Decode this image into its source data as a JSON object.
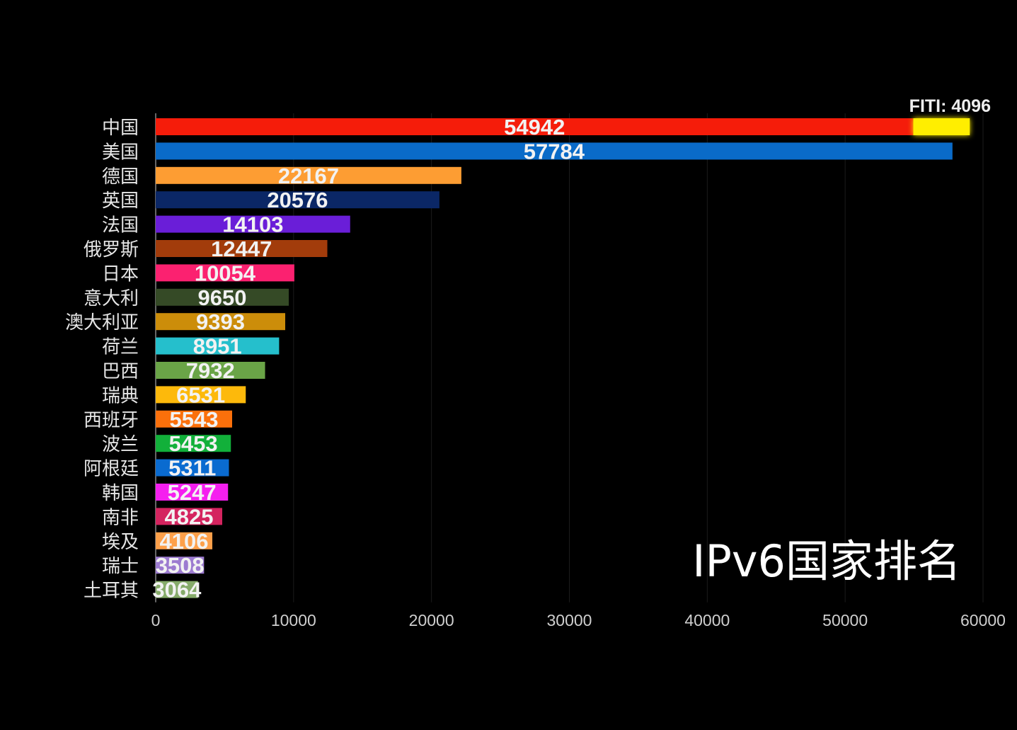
{
  "chart_data": {
    "type": "bar",
    "orientation": "horizontal",
    "title": "",
    "watermark_text": "IPv6国家排名",
    "xlim": [
      0,
      60000
    ],
    "xticks": [
      0,
      10000,
      20000,
      30000,
      40000,
      50000,
      60000
    ],
    "grid": true,
    "categories": [
      "中国",
      "美国",
      "德国",
      "英国",
      "法国",
      "俄罗斯",
      "日本",
      "意大利",
      "澳大利亚",
      "荷兰",
      "巴西",
      "瑞典",
      "西班牙",
      "波兰",
      "阿根廷",
      "韩国",
      "南非",
      "埃及",
      "瑞士",
      "土耳其"
    ],
    "values": [
      54942,
      57784,
      22167,
      20576,
      14103,
      12447,
      10054,
      9650,
      9393,
      8951,
      7932,
      6531,
      5543,
      5453,
      5311,
      5247,
      4825,
      4106,
      3508,
      3064
    ],
    "colors": [
      "#f51c0a",
      "#0a6bc8",
      "#fd9d33",
      "#0b2766",
      "#6a1ed8",
      "#a23c0b",
      "#fb2170",
      "#354a26",
      "#cc8d0a",
      "#25bfcc",
      "#6aa447",
      "#fdb90b",
      "#fb700b",
      "#12b03a",
      "#0a6bd0",
      "#f51fef",
      "#d4245f",
      "#fda04a",
      "#9c7bd0",
      "#86ab6a"
    ],
    "annotation": {
      "label": "FITI: 4096",
      "category": "中国",
      "value": 4096,
      "color": "#ffee00"
    },
    "background": "#000000"
  }
}
